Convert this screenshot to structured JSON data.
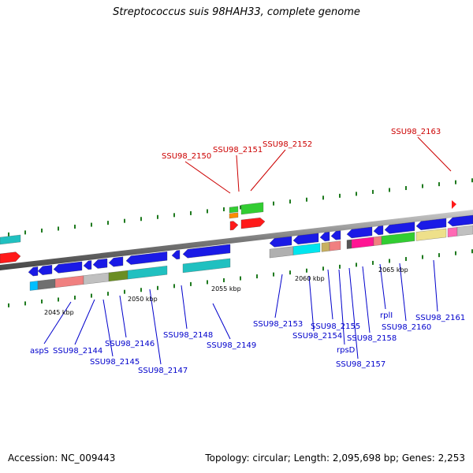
{
  "title": "Streptococcus suis 98HAH33, complete genome",
  "footer": {
    "accession": "Accession: NC_009443",
    "summary": "Topology: circular; Length: 2,095,698 bp; Genes: 2,253"
  },
  "colors": {
    "backbone": "#8a8a8a",
    "tick": "#1f7a1f",
    "label_blue": "#0000cc",
    "label_red": "#cc0000",
    "arrow_blue": "#1a1ae6",
    "arrow_red": "#ff1a1a"
  },
  "kbp_labels": [
    "2045 kbp",
    "2050 kbp",
    "2055 kbp",
    "2060 kbp",
    "2065 kbp"
  ],
  "gene_labels_top": [
    "SSU98_2150",
    "SSU98_2151",
    "SSU98_2152",
    "SSU98_2163"
  ],
  "gene_labels_bottom": [
    "aspS",
    "SSU98_2144",
    "SSU98_2145",
    "SSU98_2146",
    "SSU98_2147",
    "SSU98_2148",
    "SSU98_2149",
    "SSU98_2153",
    "SSU98_2154",
    "SSU98_2155",
    "rpsD",
    "SSU98_2157",
    "SSU98_2158",
    "rplI",
    "SSU98_2160",
    "SSU98_2161"
  ]
}
